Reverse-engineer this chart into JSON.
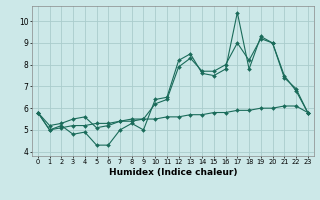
{
  "xlabel": "Humidex (Indice chaleur)",
  "bg_color": "#cce8e8",
  "grid_color": "#aacccc",
  "line_color": "#1a6b5a",
  "x": [
    0,
    1,
    2,
    3,
    4,
    5,
    6,
    7,
    8,
    9,
    10,
    11,
    12,
    13,
    14,
    15,
    16,
    17,
    18,
    19,
    20,
    21,
    22,
    23
  ],
  "line1": [
    5.8,
    5.0,
    5.2,
    4.8,
    4.9,
    4.3,
    4.3,
    5.0,
    5.3,
    5.0,
    6.4,
    6.5,
    8.2,
    8.5,
    7.6,
    7.5,
    7.8,
    10.4,
    7.8,
    9.3,
    9.0,
    7.5,
    6.8,
    5.8
  ],
  "line2": [
    5.8,
    5.2,
    5.3,
    5.5,
    5.6,
    5.1,
    5.2,
    5.4,
    5.5,
    5.5,
    6.2,
    6.4,
    7.9,
    8.3,
    7.7,
    7.7,
    8.0,
    9.0,
    8.2,
    9.2,
    9.0,
    7.4,
    6.9,
    5.8
  ],
  "line3": [
    5.8,
    5.0,
    5.1,
    5.2,
    5.2,
    5.3,
    5.3,
    5.4,
    5.4,
    5.5,
    5.5,
    5.6,
    5.6,
    5.7,
    5.7,
    5.8,
    5.8,
    5.9,
    5.9,
    6.0,
    6.0,
    6.1,
    6.1,
    5.8
  ],
  "ylim": [
    3.8,
    10.7
  ],
  "xlim": [
    -0.5,
    23.5
  ],
  "yticks": [
    4,
    5,
    6,
    7,
    8,
    9,
    10
  ],
  "xticks": [
    0,
    1,
    2,
    3,
    4,
    5,
    6,
    7,
    8,
    9,
    10,
    11,
    12,
    13,
    14,
    15,
    16,
    17,
    18,
    19,
    20,
    21,
    22,
    23
  ]
}
